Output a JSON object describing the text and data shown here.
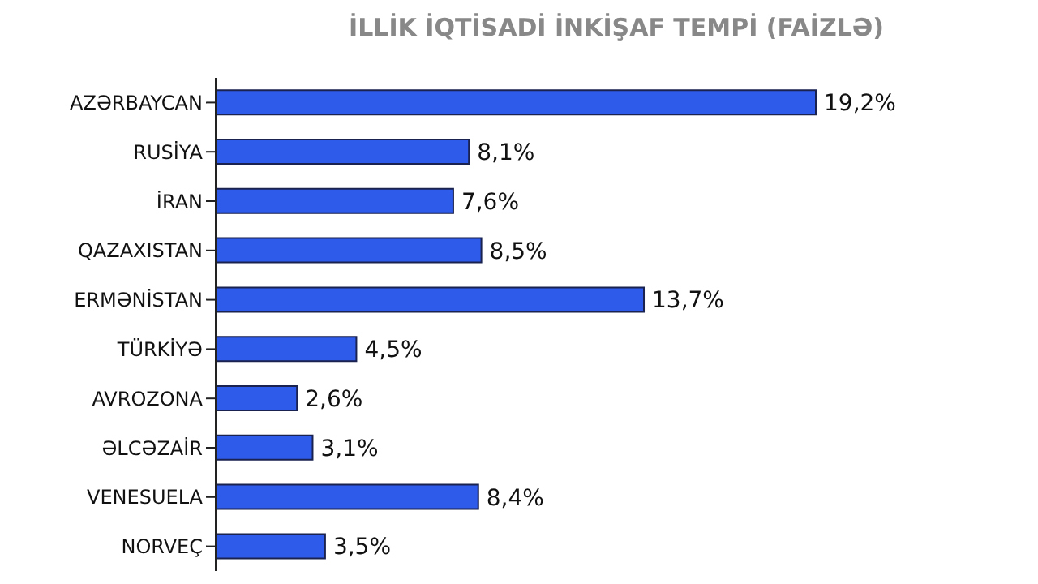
{
  "chart_data": {
    "type": "bar",
    "orientation": "horizontal",
    "title": "İLLİK İQTİSADİ İNKİŞAF TEMPİ (FAİZLƏ)",
    "categories": [
      "AZƏRBAYCAN",
      "RUSİYA",
      "İRAN",
      "QAZAXISTAN",
      "ERMƏNİSTAN",
      "TÜRKİYƏ",
      "AVROZONA",
      "ƏLCƏZAİR",
      "VENESUELA",
      "NORVEÇ"
    ],
    "values": [
      19.2,
      8.1,
      7.6,
      8.5,
      13.7,
      4.5,
      2.6,
      3.1,
      8.4,
      3.5
    ],
    "value_labels": [
      "19,2%",
      "8,1%",
      "7,6%",
      "8,5%",
      "13,7%",
      "4,5%",
      "2,6%",
      "3,1%",
      "8,4%",
      "3,5%"
    ],
    "color": "#2f5bea",
    "legend": false,
    "grid": false
  }
}
